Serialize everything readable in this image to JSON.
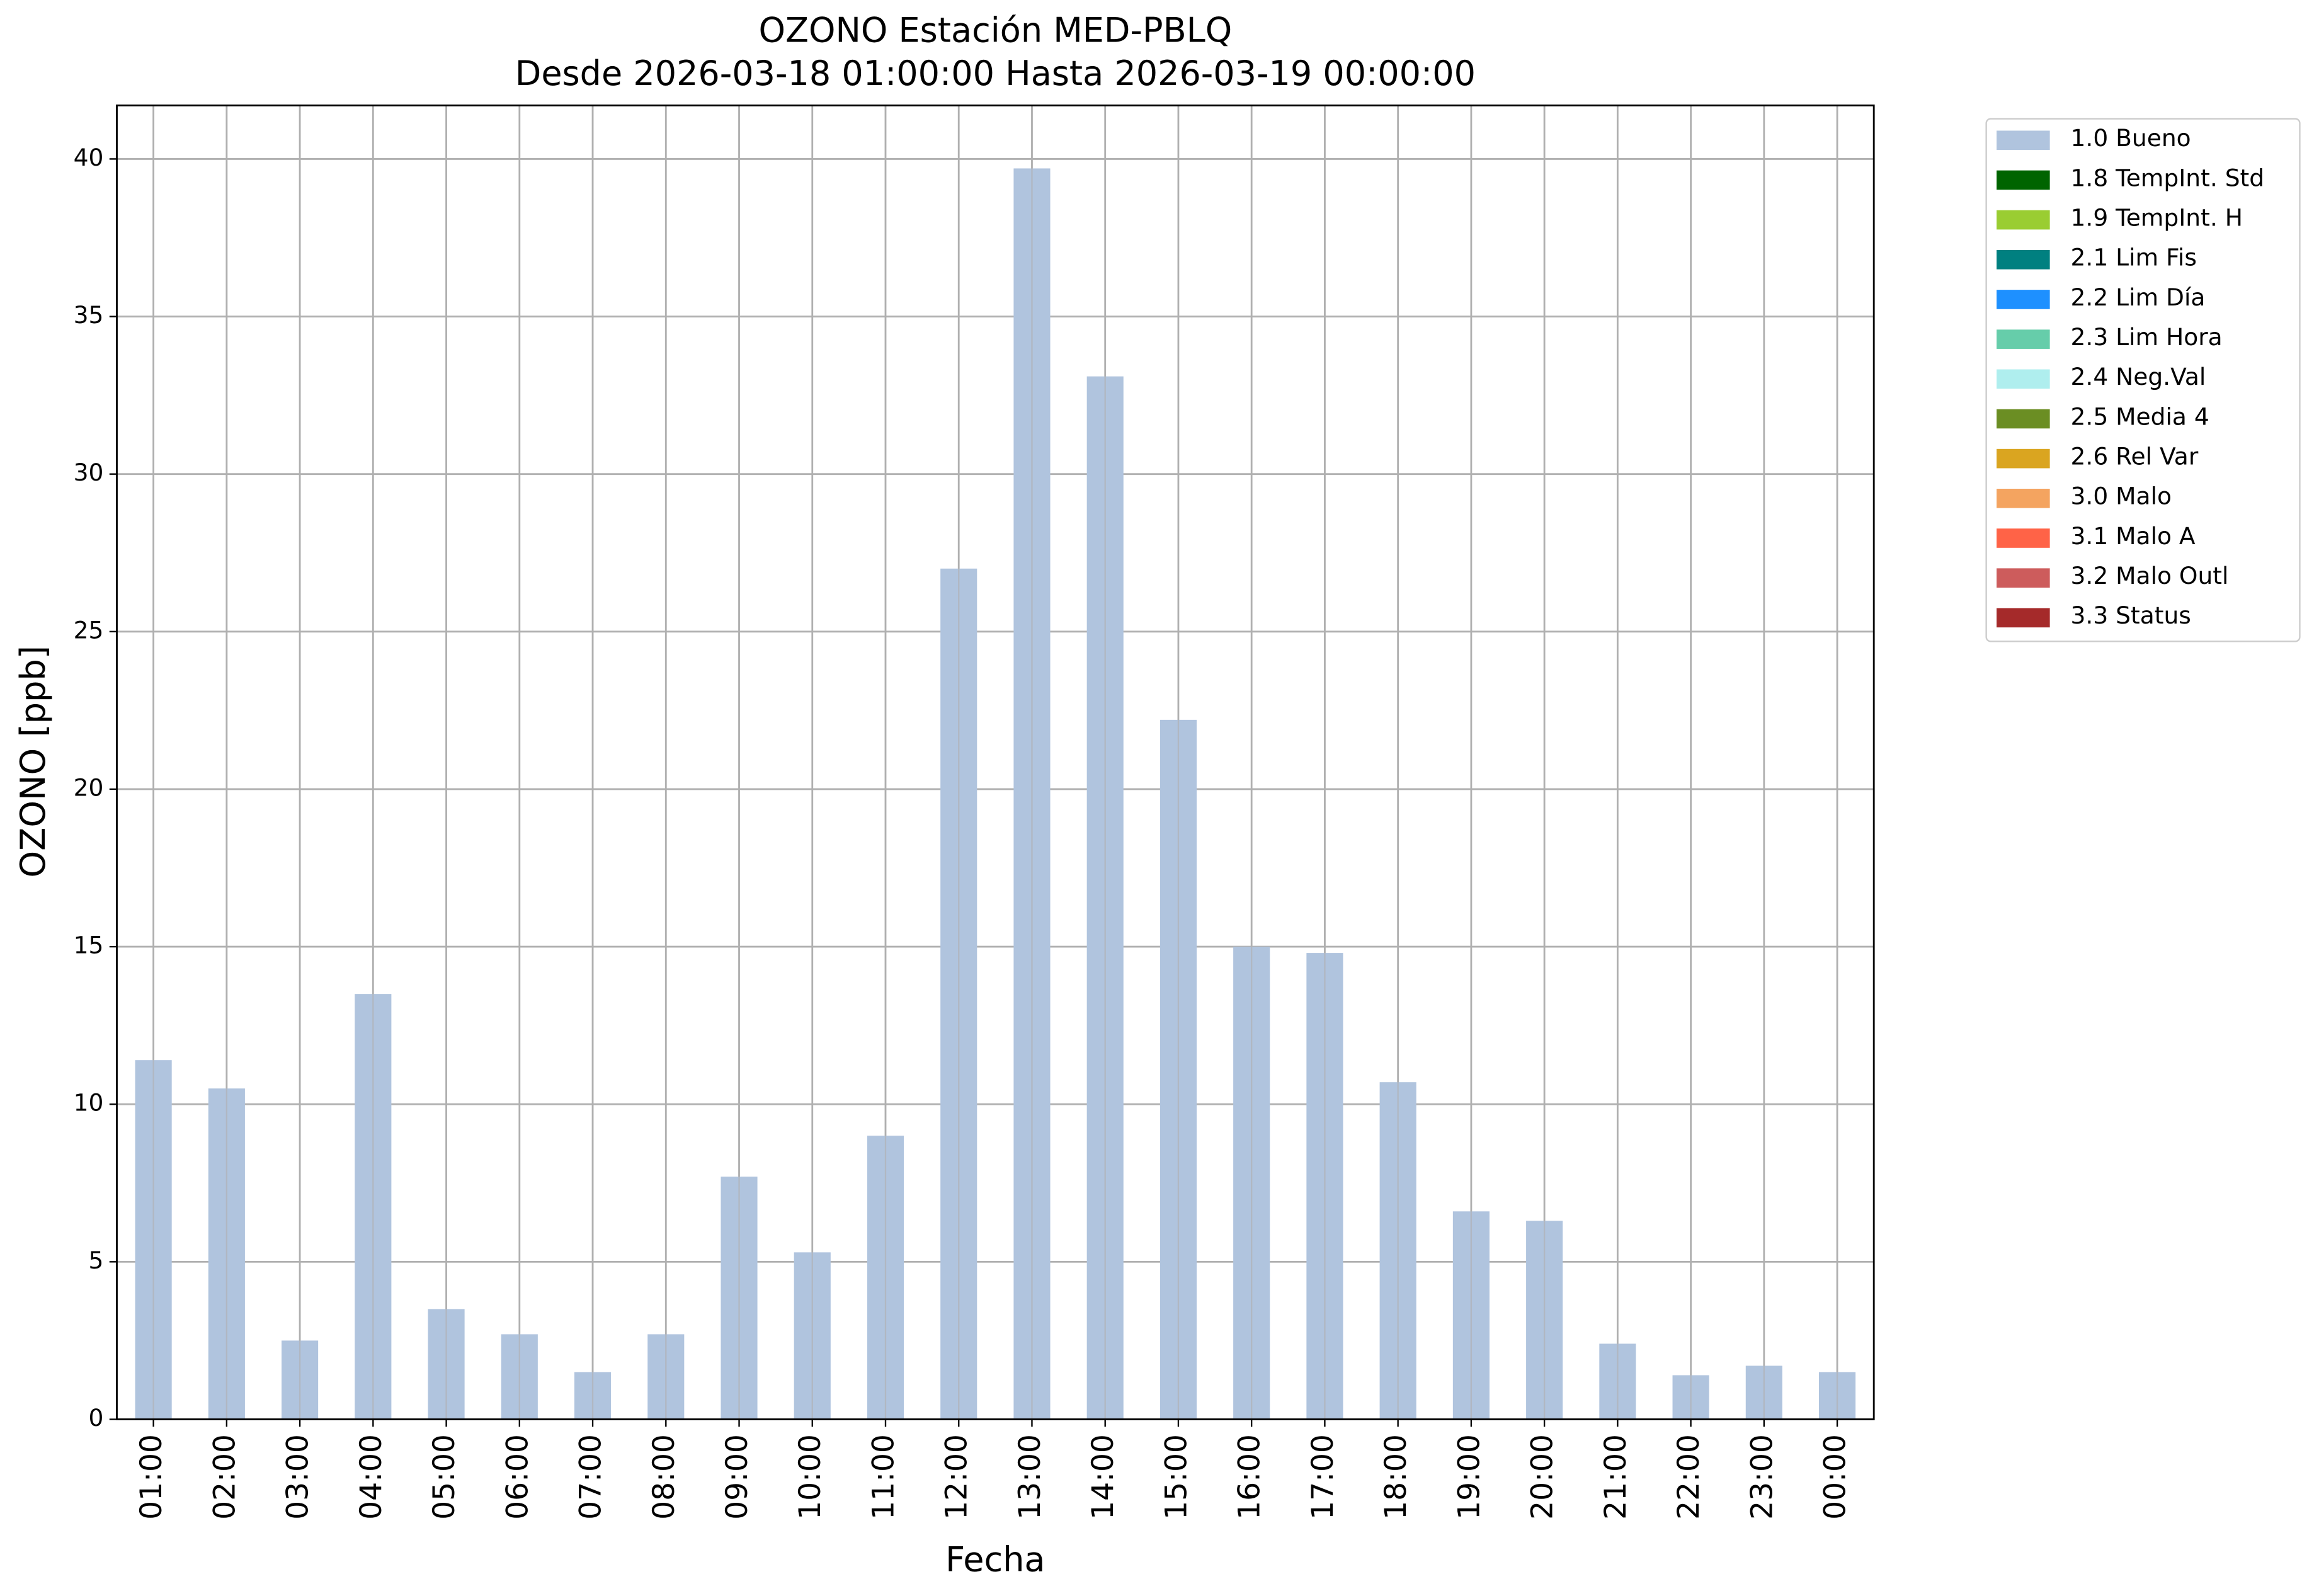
{
  "chart_data": {
    "type": "bar",
    "title": "OZONO Estación MED-PBLQ",
    "subtitle": "Desde 2026-03-18 01:00:00 Hasta 2026-03-19 00:00:00",
    "x_label": "Fecha",
    "y_label": "OZONO [ppb]",
    "categories": [
      "01:00",
      "02:00",
      "03:00",
      "04:00",
      "05:00",
      "06:00",
      "07:00",
      "08:00",
      "09:00",
      "10:00",
      "11:00",
      "12:00",
      "13:00",
      "14:00",
      "15:00",
      "16:00",
      "17:00",
      "18:00",
      "19:00",
      "20:00",
      "21:00",
      "22:00",
      "23:00",
      "00:00"
    ],
    "series": [
      {
        "name": "1.0 Bueno",
        "color": "#b0c4de",
        "values": [
          11.4,
          10.5,
          2.5,
          13.5,
          3.5,
          2.7,
          1.5,
          2.7,
          7.7,
          5.3,
          9.0,
          27.0,
          39.7,
          33.1,
          22.2,
          15.0,
          14.8,
          10.7,
          6.6,
          6.3,
          2.4,
          1.4,
          1.7,
          1.5
        ]
      },
      {
        "name": "1.8 TempInt. Std",
        "color": "#006400",
        "values": [
          null,
          null,
          null,
          null,
          null,
          null,
          null,
          null,
          null,
          null,
          null,
          null,
          null,
          null,
          null,
          null,
          null,
          null,
          null,
          null,
          null,
          null,
          null,
          null
        ]
      },
      {
        "name": "1.9 TempInt. H",
        "color": "#9acd32",
        "values": [
          null,
          null,
          null,
          null,
          null,
          null,
          null,
          null,
          null,
          null,
          null,
          null,
          null,
          null,
          null,
          null,
          null,
          null,
          null,
          null,
          null,
          null,
          null,
          null
        ]
      },
      {
        "name": "2.1 Lim Fis",
        "color": "#008080",
        "values": [
          null,
          null,
          null,
          null,
          null,
          null,
          null,
          null,
          null,
          null,
          null,
          null,
          null,
          null,
          null,
          null,
          null,
          null,
          null,
          null,
          null,
          null,
          null,
          null
        ]
      },
      {
        "name": "2.2 Lim Día",
        "color": "#1e90ff",
        "values": [
          null,
          null,
          null,
          null,
          null,
          null,
          null,
          null,
          null,
          null,
          null,
          null,
          null,
          null,
          null,
          null,
          null,
          null,
          null,
          null,
          null,
          null,
          null,
          null
        ]
      },
      {
        "name": "2.3 Lim Hora",
        "color": "#66cdaa",
        "values": [
          null,
          null,
          null,
          null,
          null,
          null,
          null,
          null,
          null,
          null,
          null,
          null,
          null,
          null,
          null,
          null,
          null,
          null,
          null,
          null,
          null,
          null,
          null,
          null
        ]
      },
      {
        "name": "2.4 Neg.Val",
        "color": "#afeeee",
        "values": [
          null,
          null,
          null,
          null,
          null,
          null,
          null,
          null,
          null,
          null,
          null,
          null,
          null,
          null,
          null,
          null,
          null,
          null,
          null,
          null,
          null,
          null,
          null,
          null
        ]
      },
      {
        "name": "2.5 Media 4",
        "color": "#6b8e23",
        "values": [
          null,
          null,
          null,
          null,
          null,
          null,
          null,
          null,
          null,
          null,
          null,
          null,
          null,
          null,
          null,
          null,
          null,
          null,
          null,
          null,
          null,
          null,
          null,
          null
        ]
      },
      {
        "name": "2.6 Rel Var",
        "color": "#daa520",
        "values": [
          null,
          null,
          null,
          null,
          null,
          null,
          null,
          null,
          null,
          null,
          null,
          null,
          null,
          null,
          null,
          null,
          null,
          null,
          null,
          null,
          null,
          null,
          null,
          null
        ]
      },
      {
        "name": "3.0 Malo",
        "color": "#f4a460",
        "values": [
          null,
          null,
          null,
          null,
          null,
          null,
          null,
          null,
          null,
          null,
          null,
          null,
          null,
          null,
          null,
          null,
          null,
          null,
          null,
          null,
          null,
          null,
          null,
          null
        ]
      },
      {
        "name": "3.1 Malo A",
        "color": "#ff6347",
        "values": [
          null,
          null,
          null,
          null,
          null,
          null,
          null,
          null,
          null,
          null,
          null,
          null,
          null,
          null,
          null,
          null,
          null,
          null,
          null,
          null,
          null,
          null,
          null,
          null
        ]
      },
      {
        "name": "3.2 Malo Outl",
        "color": "#cd5c5c",
        "values": [
          null,
          null,
          null,
          null,
          null,
          null,
          null,
          null,
          null,
          null,
          null,
          null,
          null,
          null,
          null,
          null,
          null,
          null,
          null,
          null,
          null,
          null,
          null,
          null
        ]
      },
      {
        "name": "3.3 Status",
        "color": "#a52a2a",
        "values": [
          null,
          null,
          null,
          null,
          null,
          null,
          null,
          null,
          null,
          null,
          null,
          null,
          null,
          null,
          null,
          null,
          null,
          null,
          null,
          null,
          null,
          null,
          null,
          null
        ]
      }
    ],
    "ylim": [
      0,
      41.7
    ],
    "yticks": [
      0,
      5,
      10,
      15,
      20,
      25,
      30,
      35,
      40
    ],
    "grid": true,
    "legend_position": "outside-upper-right"
  }
}
